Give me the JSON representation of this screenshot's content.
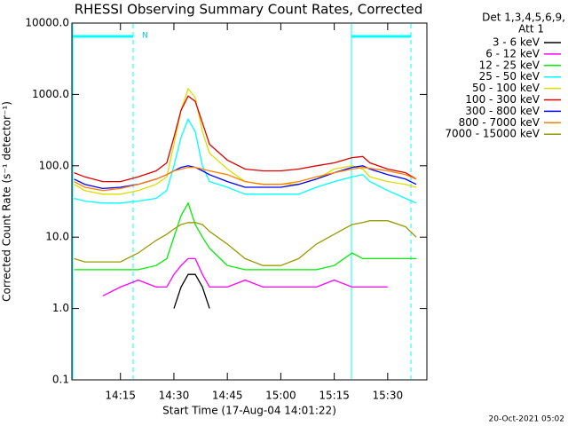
{
  "chart_data": {
    "type": "line",
    "title": "RHESSI Observing Summary Count Rates, Corrected",
    "x_label": "Start Time (17-Aug-04 14:01:22)",
    "y_label": "Corrected Count Rate (s⁻¹ detector⁻¹)",
    "legend_title": [
      "Det 1,3,4,5,6,9,",
      "Att 1"
    ],
    "legend": "right",
    "annotation": "N",
    "footer": "20-Oct-2021 05:02",
    "log_y": true,
    "xlim": [
      "14:01:22",
      "15:41"
    ],
    "xticks": [
      "14:15",
      "14:30",
      "14:45",
      "15:00",
      "15:15",
      "15:30"
    ],
    "ylim": [
      0.1,
      10000
    ],
    "yticks": [
      {
        "value": 10000,
        "label": "10000.0"
      },
      {
        "value": 1000,
        "label": "1000.0"
      },
      {
        "value": 100,
        "label": "100.0"
      },
      {
        "value": 10,
        "label": "10.0"
      },
      {
        "value": 1,
        "label": "1.0"
      },
      {
        "value": 0.1,
        "label": "0.1"
      }
    ],
    "x": [
      "14:02",
      "14:05",
      "14:10",
      "14:15",
      "14:20",
      "14:25",
      "14:28",
      "14:30",
      "14:32",
      "14:34",
      "14:36",
      "14:38",
      "14:40",
      "14:45",
      "14:50",
      "14:55",
      "15:00",
      "15:05",
      "15:10",
      "15:15",
      "15:20",
      "15:23",
      "15:25",
      "15:30",
      "15:35",
      "15:38"
    ],
    "series": [
      {
        "name": "3 - 6 keV",
        "color": "#000000",
        "values": [
          null,
          null,
          null,
          null,
          null,
          null,
          null,
          1,
          2,
          3,
          3,
          2,
          1,
          null,
          null,
          null,
          null,
          null,
          null,
          null,
          null,
          null,
          null,
          null,
          null,
          null
        ]
      },
      {
        "name": "6 - 12 keV",
        "color": "#ff00ff",
        "values": [
          null,
          null,
          1.5,
          2,
          2.5,
          2,
          2,
          3,
          4,
          5,
          5,
          3,
          2,
          2,
          2.5,
          2,
          2,
          2,
          2,
          2.5,
          2,
          2,
          2,
          2,
          null,
          null
        ]
      },
      {
        "name": "12 - 25 keV",
        "color": "#00ee00",
        "values": [
          3.5,
          3.5,
          3.5,
          3.5,
          3.5,
          4,
          5,
          10,
          20,
          30,
          15,
          10,
          7,
          4,
          3.5,
          3.5,
          3.5,
          3.5,
          3.5,
          4,
          6,
          5,
          5,
          5,
          5,
          5
        ]
      },
      {
        "name": "25 - 50 keV",
        "color": "#00ffff",
        "values": [
          35,
          32,
          30,
          30,
          32,
          35,
          45,
          100,
          250,
          450,
          300,
          100,
          60,
          50,
          40,
          40,
          40,
          40,
          50,
          60,
          70,
          75,
          60,
          45,
          35,
          30
        ]
      },
      {
        "name": "50 - 100 keV",
        "color": "#dddd00",
        "values": [
          55,
          45,
          40,
          40,
          45,
          55,
          70,
          200,
          600,
          1200,
          900,
          300,
          150,
          90,
          60,
          55,
          55,
          55,
          65,
          90,
          100,
          90,
          70,
          60,
          55,
          50
        ]
      },
      {
        "name": "100 - 300 keV",
        "color": "#dd0000",
        "values": [
          80,
          70,
          60,
          60,
          70,
          85,
          110,
          250,
          600,
          950,
          800,
          400,
          200,
          120,
          90,
          85,
          85,
          90,
          100,
          110,
          130,
          135,
          110,
          90,
          80,
          65
        ]
      },
      {
        "name": "300 - 800 keV",
        "color": "#0000ff",
        "values": [
          65,
          55,
          48,
          50,
          55,
          65,
          75,
          85,
          95,
          100,
          95,
          85,
          75,
          60,
          50,
          50,
          50,
          55,
          65,
          80,
          95,
          100,
          90,
          75,
          65,
          55
        ]
      },
      {
        "name": "800 - 7000 keV",
        "color": "#ff8000",
        "values": [
          60,
          50,
          45,
          48,
          55,
          65,
          75,
          85,
          90,
          95,
          95,
          90,
          85,
          75,
          60,
          55,
          55,
          60,
          70,
          80,
          90,
          95,
          92,
          85,
          75,
          65
        ]
      },
      {
        "name": "7000 - 15000 keV",
        "color": "#999900",
        "values": [
          5,
          4.5,
          4.5,
          4.5,
          6,
          9,
          11,
          13,
          15,
          16,
          16,
          15,
          12,
          8,
          5,
          4,
          4,
          5,
          8,
          11,
          15,
          16,
          17,
          17,
          14,
          10
        ]
      }
    ]
  }
}
